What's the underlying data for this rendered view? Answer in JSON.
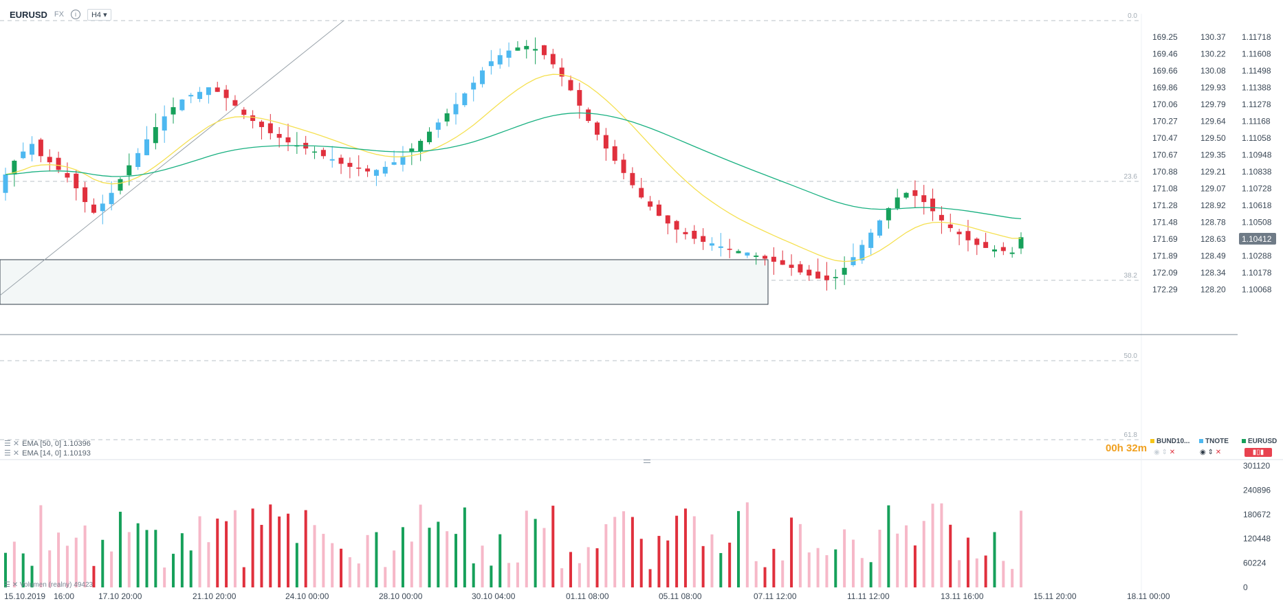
{
  "header": {
    "symbol": "EURUSD",
    "market": "FX",
    "info_glyph": "i",
    "timeframe": "H4 ▾"
  },
  "indicators": [
    {
      "label": "EMA [50, 0] 1.10396"
    },
    {
      "label": "EMA [14, 0] 1.10193"
    }
  ],
  "volume_label": "Volumen (realny) 49423",
  "countdown": {
    "hours": "00h",
    "minutes": "32m"
  },
  "legend": [
    {
      "name": "BUND10...",
      "color": "#f5c518"
    },
    {
      "name": "TNOTE",
      "color": "#4db8f0"
    },
    {
      "name": "EURUSD",
      "color": "#16a05a"
    }
  ],
  "chart_data": {
    "type": "candlestick",
    "current_price": "1.10412",
    "fib_levels": [
      "0.0",
      "23.6",
      "38.2",
      "50.0",
      "61.8"
    ],
    "axis_bund": [
      "169.25",
      "169.46",
      "169.66",
      "169.86",
      "170.06",
      "170.27",
      "170.47",
      "170.67",
      "170.88",
      "171.08",
      "171.28",
      "171.48",
      "171.69",
      "171.89",
      "172.09",
      "172.29"
    ],
    "axis_tnote": [
      "130.37",
      "130.22",
      "130.08",
      "129.93",
      "129.79",
      "129.64",
      "129.50",
      "129.35",
      "129.21",
      "129.07",
      "128.92",
      "128.78",
      "128.63",
      "128.49",
      "128.34",
      "128.20"
    ],
    "axis_eurusd": [
      "1.11718",
      "1.11608",
      "1.11498",
      "1.11388",
      "1.11278",
      "1.11168",
      "1.11058",
      "1.10948",
      "1.10838",
      "1.10728",
      "1.10618",
      "1.10508",
      "1.10412",
      "1.10288",
      "1.10178",
      "1.10068"
    ],
    "volume_axis": [
      "301120",
      "240896",
      "180672",
      "120448",
      "60224",
      "0"
    ],
    "x_labels": [
      "15.10.2019",
      "16:00",
      "17.10 20:00",
      "21.10 20:00",
      "24.10 00:00",
      "28.10 00:00",
      "30.10 04:00",
      "01.11 08:00",
      "05.11 08:00",
      "07.11 12:00",
      "11.11 12:00",
      "13.11 16:00",
      "15.11 20:00",
      "18.11 00:00"
    ],
    "eurusd_closes": [
      1.1082,
      1.1091,
      1.1097,
      1.1102,
      1.1094,
      1.109,
      1.1085,
      1.108,
      1.1073,
      1.1064,
      1.1057,
      1.1063,
      1.107,
      1.1079,
      1.1088,
      1.1096,
      1.1105,
      1.1113,
      1.112,
      1.1126,
      1.1131,
      1.1134,
      1.1136,
      1.1139,
      1.1136,
      1.1132,
      1.1127,
      1.1121,
      1.1117,
      1.1113,
      1.1109,
      1.1106,
      1.1103,
      1.1101,
      1.1099,
      1.1097,
      1.1094,
      1.1092,
      1.1089,
      1.1087,
      1.1086,
      1.1084,
      1.1085,
      1.1087,
      1.109,
      1.1094,
      1.1099,
      1.1104,
      1.111,
      1.1116,
      1.1122,
      1.1128,
      1.1135,
      1.1142,
      1.115,
      1.1156,
      1.116,
      1.1163,
      1.1165,
      1.1166,
      1.1164,
      1.116,
      1.1154,
      1.1146,
      1.1137,
      1.1127,
      1.1117,
      1.1108,
      1.1099,
      1.1091,
      1.1083,
      1.1075,
      1.1067,
      1.1061,
      1.1055,
      1.105,
      1.1046,
      1.1043,
      1.104,
      1.1038,
      1.1037,
      1.1035,
      1.1033,
      1.1032,
      1.1031,
      1.1029,
      1.1027,
      1.1025,
      1.1023,
      1.1021,
      1.1018,
      1.1016,
      1.1014,
      1.1013,
      1.1015,
      1.1021,
      1.1028,
      1.1036,
      1.1044,
      1.1052,
      1.106,
      1.1067,
      1.107,
      1.1068,
      1.1064,
      1.1058,
      1.1052,
      1.1047,
      1.1043,
      1.1039,
      1.1036,
      1.1034,
      1.1033,
      1.1032,
      1.1031,
      1.1041
    ]
  },
  "colors": {
    "up": "#16a05a",
    "down": "#e0303d",
    "up_hollow": "#4db8f0",
    "vol_up": "#16a05a",
    "vol_down": "#e0303d",
    "vol_light": "#f6b8c8",
    "ema14": "#f5e050",
    "ema50": "#18b080"
  }
}
